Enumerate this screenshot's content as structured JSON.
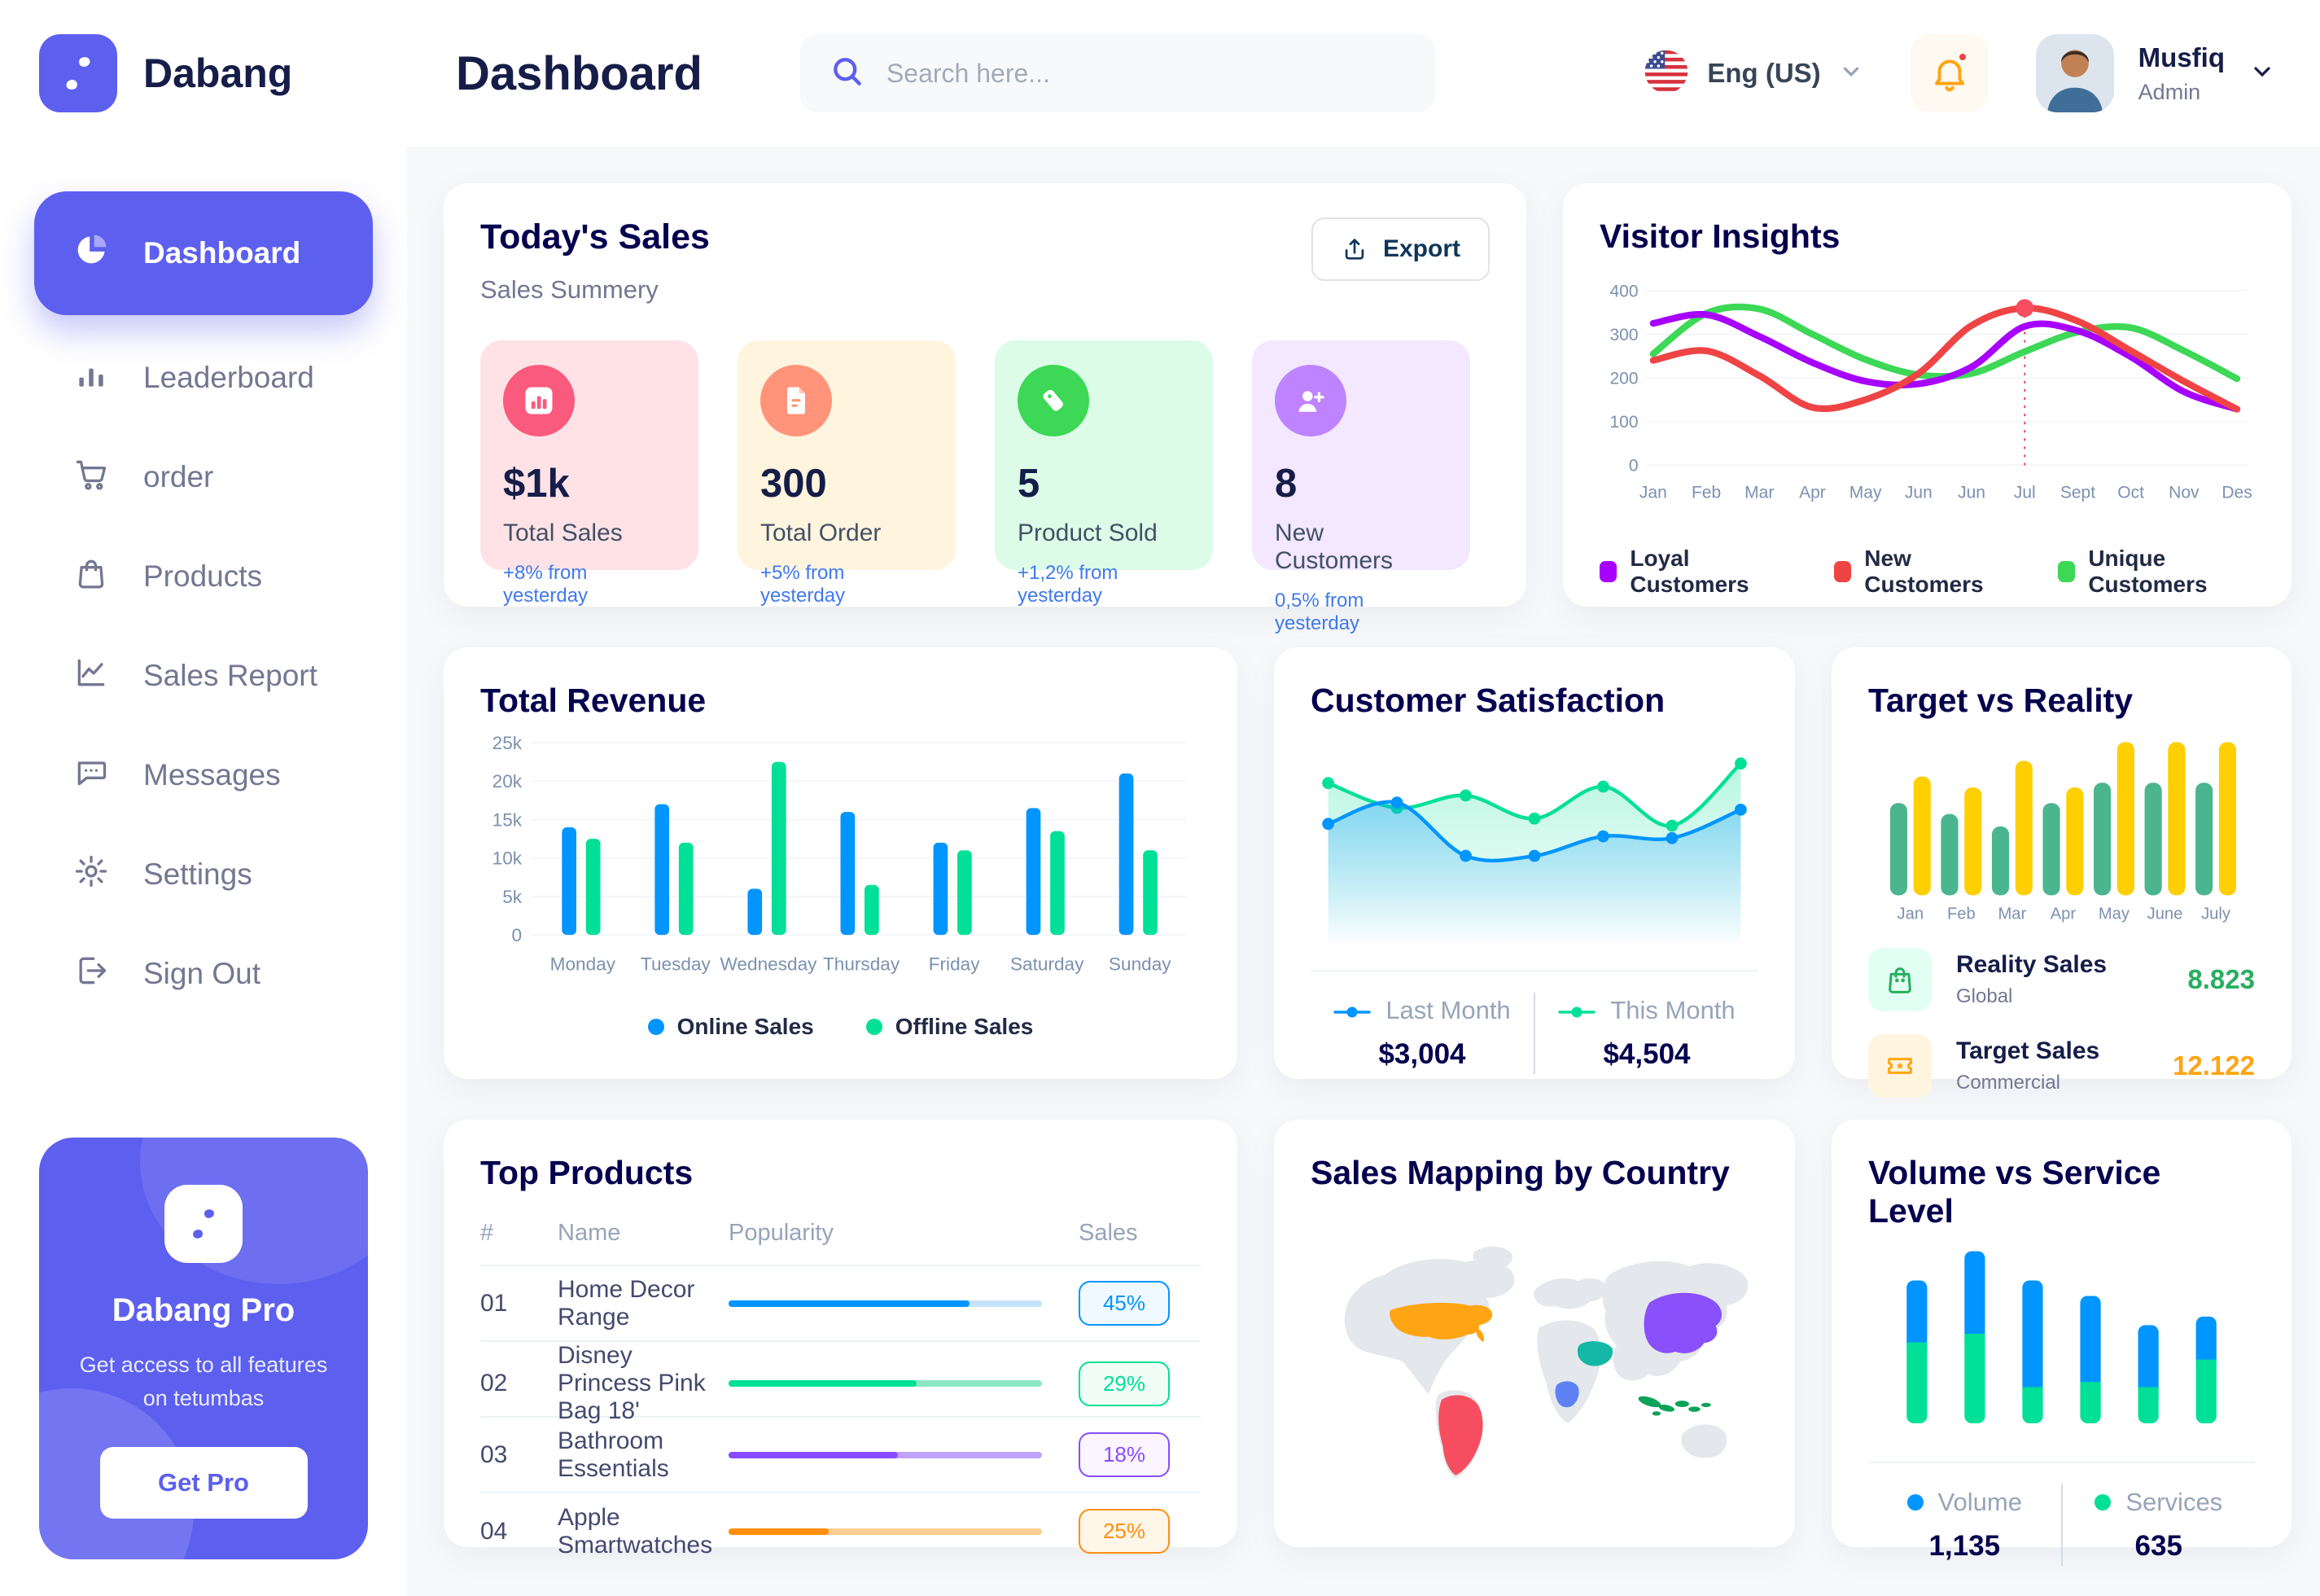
{
  "brand": {
    "name": "Dabang"
  },
  "header": {
    "title": "Dashboard",
    "search_placeholder": "Search here...",
    "language": "Eng (US)",
    "user": {
      "name": "Musfiq",
      "role": "Admin"
    }
  },
  "sidebar": {
    "items": [
      {
        "label": "Dashboard",
        "icon": "dashboard-pie-icon",
        "active": true
      },
      {
        "label": "Leaderboard",
        "icon": "leaderboard-bars-icon",
        "active": false
      },
      {
        "label": "order",
        "icon": "cart-icon",
        "active": false
      },
      {
        "label": "Products",
        "icon": "bag-icon",
        "active": false
      },
      {
        "label": "Sales Report",
        "icon": "sales-line-icon",
        "active": false
      },
      {
        "label": "Messages",
        "icon": "message-icon",
        "active": false
      },
      {
        "label": "Settings",
        "icon": "gear-icon",
        "active": false
      },
      {
        "label": "Sign Out",
        "icon": "signout-icon",
        "active": false
      }
    ],
    "pro": {
      "title": "Dabang Pro",
      "subtitle": "Get access to all features on tetumbas",
      "button": "Get Pro"
    }
  },
  "today_sales": {
    "title": "Today's Sales",
    "subtitle": "Sales Summery",
    "export_label": "Export",
    "cards": [
      {
        "value": "$1k",
        "label": "Total Sales",
        "delta": "+8% from yesterday",
        "bg": "#FFE2E6",
        "accent": "#FA5A7D",
        "icon": "chart-bars-icon"
      },
      {
        "value": "300",
        "label": "Total Order",
        "delta": "+5% from yesterday",
        "bg": "#FFF4DE",
        "accent": "#FF947A",
        "icon": "file-icon"
      },
      {
        "value": "5",
        "label": "Product Sold",
        "delta": "+1,2% from yesterday",
        "bg": "#DCFCE7",
        "accent": "#3CD856",
        "icon": "tag-icon"
      },
      {
        "value": "8",
        "label": "New Customers",
        "delta": "0,5% from yesterday",
        "bg": "#F3E8FF",
        "accent": "#BF83FF",
        "icon": "user-plus-icon"
      }
    ]
  },
  "charts": {
    "visitor_insights": {
      "type": "line",
      "title": "Visitor Insights",
      "x": [
        "Jan",
        "Feb",
        "Mar",
        "Apr",
        "May",
        "Jun",
        "Jun",
        "Jul",
        "Sept",
        "Oct",
        "Nov",
        "Des"
      ],
      "ylim": [
        0,
        400
      ],
      "yticks": [
        0,
        100,
        200,
        300,
        400
      ],
      "highlight_index": 7,
      "series": [
        {
          "name": "Loyal Customers",
          "color": "#A700FF",
          "values": [
            325,
            345,
            295,
            235,
            192,
            186,
            225,
            318,
            308,
            248,
            168,
            128
          ]
        },
        {
          "name": "New Customers",
          "color": "#EF4444",
          "values": [
            240,
            262,
            205,
            132,
            150,
            210,
            320,
            360,
            330,
            262,
            192,
            128
          ]
        },
        {
          "name": "Unique Customers",
          "color": "#3CD856",
          "values": [
            255,
            348,
            358,
            300,
            242,
            207,
            210,
            260,
            305,
            315,
            262,
            198
          ]
        }
      ]
    },
    "total_revenue": {
      "type": "bar",
      "title": "Total Revenue",
      "categories": [
        "Monday",
        "Tuesday",
        "Wednesday",
        "Thursday",
        "Friday",
        "Saturday",
        "Sunday"
      ],
      "ylim": [
        0,
        25000
      ],
      "ytick_labels": [
        "0",
        "5k",
        "10k",
        "15k",
        "20k",
        "25k"
      ],
      "series": [
        {
          "name": "Online Sales",
          "color": "#0095FF",
          "values": [
            14000,
            17000,
            6000,
            16000,
            12000,
            16500,
            21000
          ]
        },
        {
          "name": "Offline Sales",
          "color": "#00E096",
          "values": [
            12500,
            12000,
            22500,
            6500,
            11000,
            13500,
            11000
          ]
        }
      ]
    },
    "customer_satisfaction": {
      "type": "area",
      "title": "Customer Satisfaction",
      "ylim": [
        0,
        100
      ],
      "series": [
        {
          "name": "Last Month",
          "color": "#0095FF",
          "total": "$3,004",
          "values": [
            55,
            67,
            37,
            37,
            48,
            47,
            63
          ]
        },
        {
          "name": "This Month",
          "color": "#00E096",
          "total": "$4,504",
          "values": [
            78,
            64,
            71,
            58,
            76,
            54,
            89
          ]
        }
      ]
    },
    "target_vs_reality": {
      "type": "bar",
      "title": "Target vs Reality",
      "categories": [
        "Jan",
        "Feb",
        "Mar",
        "Apr",
        "May",
        "June",
        "July"
      ],
      "ylim": [
        0,
        100
      ],
      "series": [
        {
          "name": "Reality Sales",
          "subtitle": "Global",
          "color": "#4AB58E",
          "value_color": "#27AE60",
          "icon": "bag-icon",
          "icon_bg": "#E2FFF3",
          "value_label": "8.823",
          "values": [
            59,
            52,
            44,
            59,
            72,
            72,
            72
          ]
        },
        {
          "name": "Target Sales",
          "subtitle": "Commercial",
          "color": "#FFCF00",
          "value_color": "#FFA412",
          "icon": "ticket-icon",
          "icon_bg": "#FFF4DE",
          "value_label": "12.122",
          "values": [
            76,
            69,
            86,
            69,
            98,
            98,
            98
          ]
        }
      ]
    },
    "volume_service": {
      "type": "stacked-bar",
      "title": "Volume vs Service Level",
      "ylim": [
        0,
        100
      ],
      "series": [
        {
          "name": "Volume",
          "color": "#0095FF",
          "total": "1,135",
          "values": [
            36,
            48,
            62,
            50,
            36,
            25
          ]
        },
        {
          "name": "Services",
          "color": "#00E096",
          "total": "635",
          "values": [
            47,
            52,
            21,
            24,
            21,
            37
          ]
        }
      ]
    }
  },
  "top_products": {
    "title": "Top Products",
    "columns": [
      "#",
      "Name",
      "Popularity",
      "Sales"
    ],
    "rows": [
      {
        "rank": "01",
        "name": "Home Decor Range",
        "popularity": 77,
        "sales": "45%",
        "color": "#0095FF",
        "track": "#C7E2FB",
        "badge_bg": "#F0F9FF"
      },
      {
        "rank": "02",
        "name": "Disney Princess Pink Bag 18'",
        "popularity": 60,
        "sales": "29%",
        "color": "#00E096",
        "track": "#8CE8C4",
        "badge_bg": "#F1FEF8"
      },
      {
        "rank": "03",
        "name": "Bathroom Essentials",
        "popularity": 54,
        "sales": "18%",
        "color": "#884DFF",
        "track": "#C0A4FB",
        "badge_bg": "#FBF5FF"
      },
      {
        "rank": "04",
        "name": "Apple Smartwatches",
        "popularity": 32,
        "sales": "25%",
        "color": "#FF8F0D",
        "track": "#FBCD92",
        "badge_bg": "#FFF6EA"
      }
    ]
  },
  "sales_mapping": {
    "title": "Sales Mapping by Country",
    "countries": [
      {
        "name": "United States",
        "color": "#FFA412"
      },
      {
        "name": "Brazil",
        "color": "#F64E60"
      },
      {
        "name": "Saudi Arabia",
        "color": "#14B8A6"
      },
      {
        "name": "Congo",
        "color": "#5E81F4"
      },
      {
        "name": "China",
        "color": "#8950FC"
      },
      {
        "name": "Indonesia",
        "color": "#0BA259"
      }
    ]
  }
}
